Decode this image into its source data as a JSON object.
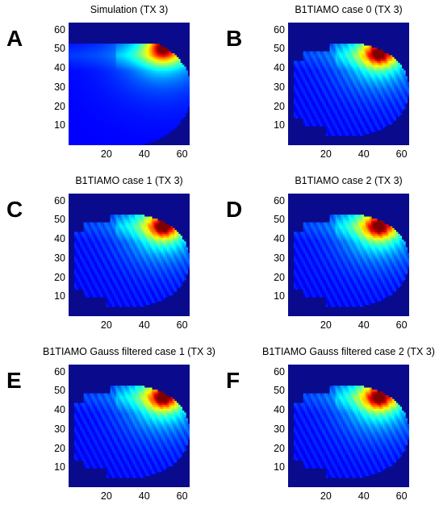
{
  "chart_data": [
    {
      "type": "heatmap",
      "panel_label": "A",
      "title": "Simulation (TX 3)",
      "colormap": "jet",
      "xlim": [
        0,
        64
      ],
      "ylim": [
        0,
        64
      ],
      "xticks": [
        20,
        40,
        60
      ],
      "yticks": [
        10,
        20,
        30,
        40,
        50,
        60
      ],
      "hotspot": {
        "x": 50,
        "y": 51
      },
      "mask_shape": "head"
    },
    {
      "type": "heatmap",
      "panel_label": "B",
      "title": "B1TIAMO case 0 (TX 3)",
      "colormap": "jet",
      "xlim": [
        0,
        64
      ],
      "ylim": [
        0,
        64
      ],
      "xticks": [
        20,
        40,
        60
      ],
      "yticks": [
        10,
        20,
        30,
        40,
        50,
        60
      ],
      "hotspot": {
        "x": 48,
        "y": 48
      },
      "mask_shape": "head-ragged"
    },
    {
      "type": "heatmap",
      "panel_label": "C",
      "title": "B1TIAMO case 1 (TX 3)",
      "colormap": "jet",
      "xlim": [
        0,
        64
      ],
      "ylim": [
        0,
        64
      ],
      "xticks": [
        20,
        40,
        60
      ],
      "yticks": [
        10,
        20,
        30,
        40,
        50,
        60
      ],
      "hotspot": {
        "x": 50,
        "y": 47
      },
      "mask_shape": "head-ragged"
    },
    {
      "type": "heatmap",
      "panel_label": "D",
      "title": "B1TIAMO case 2 (TX 3)",
      "colormap": "jet",
      "xlim": [
        0,
        64
      ],
      "ylim": [
        0,
        64
      ],
      "xticks": [
        20,
        40,
        60
      ],
      "yticks": [
        10,
        20,
        30,
        40,
        50,
        60
      ],
      "hotspot": {
        "x": 48,
        "y": 47
      },
      "mask_shape": "head-ragged"
    },
    {
      "type": "heatmap",
      "panel_label": "E",
      "title": "B1TIAMO Gauss filtered case 1 (TX 3)",
      "colormap": "jet",
      "xlim": [
        0,
        64
      ],
      "ylim": [
        0,
        64
      ],
      "xticks": [
        20,
        40,
        60
      ],
      "yticks": [
        10,
        20,
        30,
        40,
        50,
        60
      ],
      "hotspot": {
        "x": 50,
        "y": 47
      },
      "mask_shape": "head-ragged"
    },
    {
      "type": "heatmap",
      "panel_label": "F",
      "title": "B1TIAMO Gauss filtered case 2 (TX 3)",
      "colormap": "jet",
      "xlim": [
        0,
        64
      ],
      "ylim": [
        0,
        64
      ],
      "xticks": [
        20,
        40,
        60
      ],
      "yticks": [
        10,
        20,
        30,
        40,
        50,
        60
      ],
      "hotspot": {
        "x": 48,
        "y": 47
      },
      "mask_shape": "head-ragged"
    }
  ]
}
